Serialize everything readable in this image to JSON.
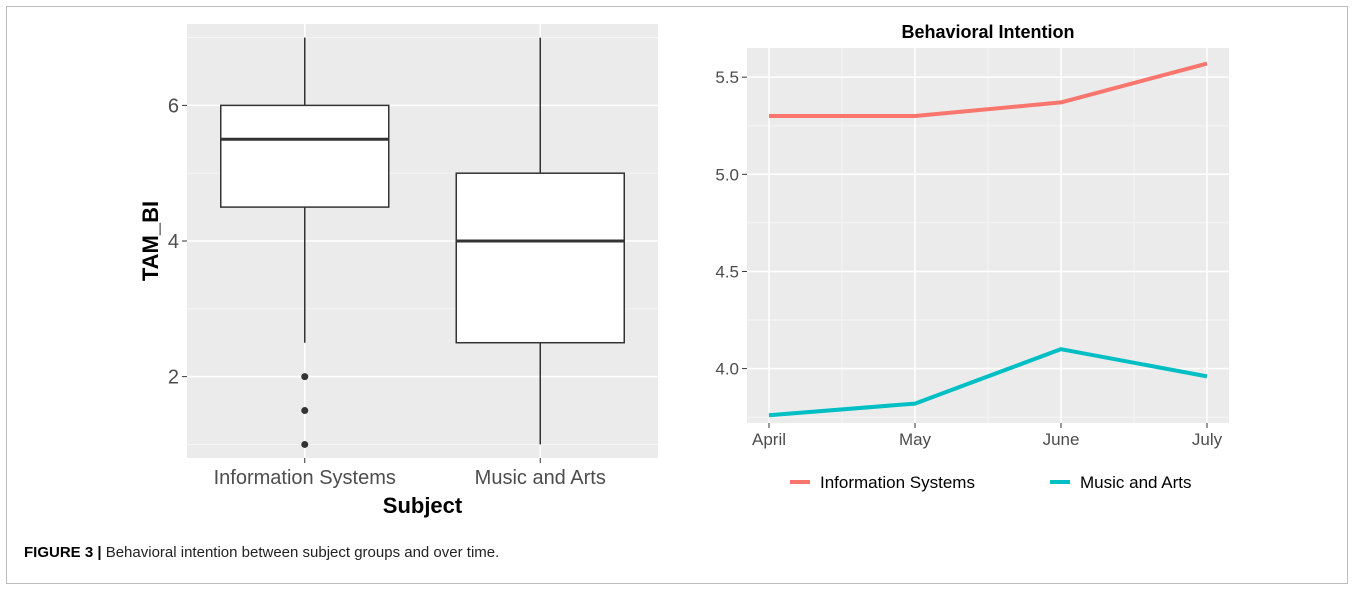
{
  "figure": {
    "label": "FIGURE 3 |",
    "caption": " Behavioral intention between subject groups and over time."
  },
  "chart_data": [
    {
      "type": "box",
      "title": "",
      "xlabel": "Subject",
      "ylabel": "TAM_BI",
      "categories": [
        "Information Systems",
        "Music and Arts"
      ],
      "y_ticks": [
        2,
        4,
        6
      ],
      "ylim": [
        0.8,
        7.2
      ],
      "grid": true,
      "boxes": [
        {
          "category": "Information Systems",
          "whisker_low": 2.5,
          "q1": 4.5,
          "median": 5.5,
          "q3": 6.0,
          "whisker_high": 7.0,
          "outliers": [
            2.0,
            1.5,
            1.0
          ]
        },
        {
          "category": "Music and Arts",
          "whisker_low": 1.0,
          "q1": 2.5,
          "median": 4.0,
          "q3": 5.0,
          "whisker_high": 7.0,
          "outliers": []
        }
      ]
    },
    {
      "type": "line",
      "title": "Behavioral Intention",
      "xlabel": "",
      "ylabel": "",
      "categories": [
        "April",
        "May",
        "June",
        "July"
      ],
      "y_ticks": [
        4.0,
        4.5,
        5.0,
        5.5
      ],
      "y_tick_labels": [
        "4.0",
        "4.5",
        "5.0",
        "5.5"
      ],
      "ylim": [
        3.72,
        5.65
      ],
      "grid": true,
      "legend": "bottom",
      "series": [
        {
          "name": "Information Systems",
          "color": "#f8766d",
          "values": [
            5.3,
            5.3,
            5.37,
            5.57
          ]
        },
        {
          "name": "Music and Arts",
          "color": "#00bfc4",
          "values": [
            3.76,
            3.82,
            4.1,
            3.96
          ]
        }
      ]
    }
  ]
}
